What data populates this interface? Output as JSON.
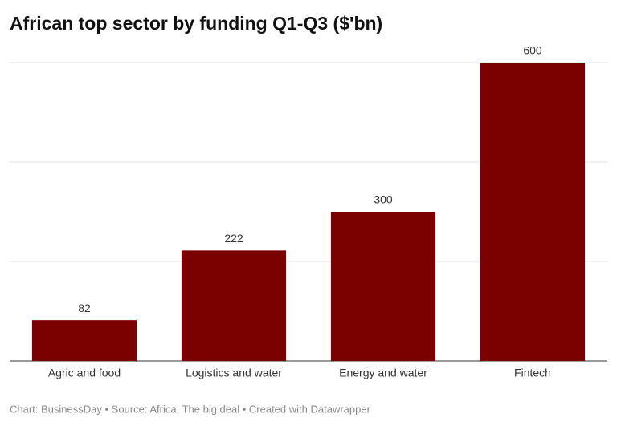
{
  "chart_data": {
    "type": "bar",
    "title": "African top sector by funding Q1-Q3 ($'bn)",
    "categories": [
      "Agric and food",
      "Logistics and water",
      "Energy and water",
      "Fintech"
    ],
    "values": [
      82,
      222,
      300,
      600
    ],
    "color": "#7b0000",
    "ylim": [
      0,
      600
    ],
    "yticks": [
      0,
      200,
      400,
      600
    ],
    "grid": true,
    "footer": "Chart: BusinessDay • Source: Africa: The big deal • Created with Datawrapper"
  }
}
